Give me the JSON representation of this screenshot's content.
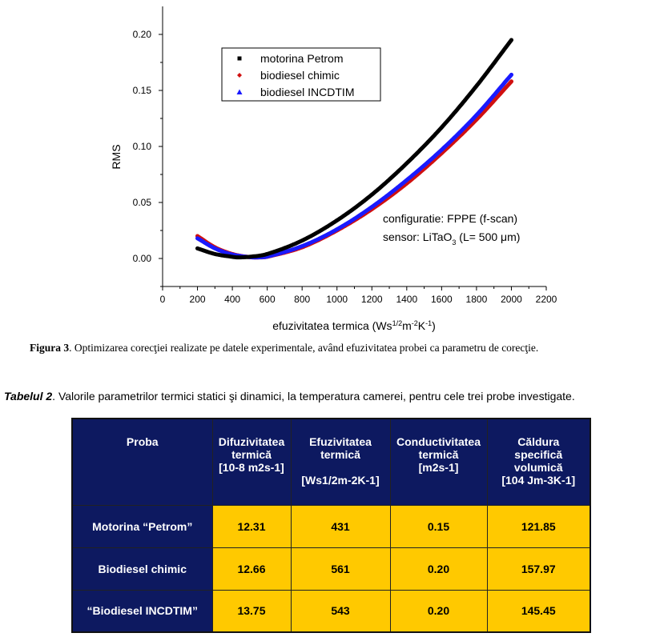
{
  "figure": {
    "caption_label": "Figura 3",
    "caption_text": ". Optimizarea corecţiei realizate pe datele experimentale, având efuzivitatea probei ca parametru de corecţie."
  },
  "chart_data": {
    "type": "line",
    "ylabel": "RMS",
    "xlabel_parts": [
      "efuzivitatea termica (Ws",
      "1/2",
      "m",
      "-2",
      "K",
      "-1",
      ")"
    ],
    "xlim": [
      0,
      2200
    ],
    "ylim": [
      -0.025,
      0.225
    ],
    "xticks": [
      0,
      200,
      400,
      600,
      800,
      1000,
      1200,
      1400,
      1600,
      1800,
      2000,
      2200
    ],
    "yticks": [
      0.0,
      0.05,
      0.1,
      0.15,
      0.2
    ],
    "ytick_labels": [
      "0.00",
      "0.05",
      "0.10",
      "0.15",
      "0.20"
    ],
    "legend_position": "top-left",
    "series": [
      {
        "name": "motorina Petrom",
        "color": "#000000",
        "marker": "square",
        "x": [
          200,
          300,
          400,
          431,
          500,
          600,
          800,
          1000,
          1200,
          1400,
          1600,
          1800,
          2000
        ],
        "y": [
          0.009,
          0.004,
          0.0015,
          0.001,
          0.0015,
          0.004,
          0.016,
          0.034,
          0.057,
          0.085,
          0.117,
          0.154,
          0.195
        ]
      },
      {
        "name": "biodiesel chimic",
        "color": "#d01010",
        "marker": "diamond",
        "x": [
          200,
          300,
          400,
          500,
          561,
          600,
          800,
          1000,
          1200,
          1400,
          1600,
          1800,
          2000
        ],
        "y": [
          0.02,
          0.01,
          0.004,
          0.0012,
          0.001,
          0.0015,
          0.01,
          0.025,
          0.044,
          0.067,
          0.094,
          0.124,
          0.158
        ]
      },
      {
        "name": "biodiesel INCDTIM",
        "color": "#1a1aff",
        "marker": "triangle",
        "x": [
          200,
          300,
          400,
          500,
          543,
          600,
          800,
          1000,
          1200,
          1400,
          1600,
          1800,
          2000
        ],
        "y": [
          0.018,
          0.009,
          0.0035,
          0.0012,
          0.001,
          0.0017,
          0.011,
          0.026,
          0.046,
          0.07,
          0.097,
          0.128,
          0.164
        ]
      }
    ],
    "annotation_line1": "configuratie: FPPE (f-scan)",
    "annotation_line2_parts": [
      "sensor: LiTaO",
      "3",
      " (L= 500 μm)"
    ]
  },
  "table": {
    "title_label": "Tabelul 2",
    "title_text": ". Valorile parametrilor termici statici şi dinamici, la temperatura camerei, pentru cele trei probe investigate.",
    "headers": [
      [
        "Proba"
      ],
      [
        "Difuzivitatea",
        "termică",
        "[10-8 m2s-1]"
      ],
      [
        "Efuzivitatea",
        "termică",
        "",
        "[Ws1/2m-2K-1]"
      ],
      [
        "Conductivitatea",
        "termică",
        "[m2s-1]"
      ],
      [
        "Căldura",
        "specifică",
        "volumică",
        "[104 Jm-3K-1]"
      ]
    ],
    "rows": [
      {
        "name": "Motorina “Petrom”",
        "values": [
          "12.31",
          "431",
          "0.15",
          "121.85"
        ]
      },
      {
        "name": "Biodiesel chimic",
        "values": [
          "12.66",
          "561",
          "0.20",
          "157.97"
        ]
      },
      {
        "name": "“Biodiesel INCDTIM”",
        "values": [
          "13.75",
          "543",
          "0.20",
          "145.45"
        ]
      }
    ]
  }
}
